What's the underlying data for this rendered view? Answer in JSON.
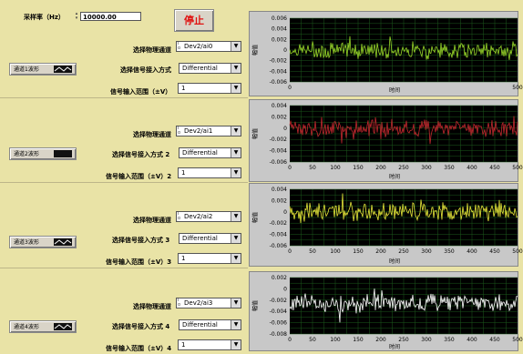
{
  "sample_rate": {
    "label": "采样率（Hz）",
    "value": "10000.00"
  },
  "stop_button": {
    "label": "停止"
  },
  "channels": [
    {
      "channel_label": "选择物理通道",
      "channel_value": "Dev2/ai0",
      "terminal_label": "选择信号接入方式",
      "terminal_value": "Differential",
      "range_label": "信号输入范围（±V）",
      "range_value": "1",
      "waveform_button": "通道1波形",
      "color": "#9ad82a",
      "graph": {
        "ylabel": "幅值",
        "xlabel": "时间",
        "xticks": [
          "0",
          "500"
        ],
        "yticks": [
          "0.006",
          "0.004",
          "0.002",
          "0",
          "-0.002",
          "-0.004",
          "-0.006"
        ],
        "ylim": [
          -0.006,
          0.006
        ]
      }
    },
    {
      "channel_label": "选择物理通道",
      "channel_value": "Dev2/ai1",
      "terminal_label": "选择信号接入方式 2",
      "terminal_value": "Differential",
      "range_label": "信号输入范围（±V）2",
      "range_value": "1",
      "waveform_button": "通道2波形",
      "color": "#c0282e",
      "graph": {
        "ylabel": "幅值",
        "xlabel": "时间",
        "xticks": [
          "0",
          "50",
          "100",
          "150",
          "200",
          "250",
          "300",
          "350",
          "400",
          "450",
          "500"
        ],
        "yticks": [
          "0.004",
          "0.002",
          "0",
          "-0.002",
          "-0.004",
          "-0.006"
        ],
        "ylim": [
          -0.006,
          0.004
        ]
      }
    },
    {
      "channel_label": "选择物理通道",
      "channel_value": "Dev2/ai2",
      "terminal_label": "选择信号接入方式 3",
      "terminal_value": "Differential",
      "range_label": "信号输入范围（±V）3",
      "range_value": "1",
      "waveform_button": "通道3波形",
      "color": "#e8e83a",
      "graph": {
        "ylabel": "幅值",
        "xlabel": "时间",
        "xticks": [
          "0",
          "50",
          "100",
          "150",
          "200",
          "250",
          "300",
          "350",
          "400",
          "450",
          "500"
        ],
        "yticks": [
          "0.004",
          "0.002",
          "0",
          "-0.002",
          "-0.004",
          "-0.006"
        ],
        "ylim": [
          -0.006,
          0.004
        ]
      }
    },
    {
      "channel_label": "选择物理通道",
      "channel_value": "Dev2/ai3",
      "terminal_label": "选择信号接入方式 4",
      "terminal_value": "Differential",
      "range_label": "信号输入范围（±V）4",
      "range_value": "1",
      "waveform_button": "通道4波形",
      "color": "#ffffff",
      "graph": {
        "ylabel": "幅值",
        "xlabel": "时间",
        "xticks": [
          "0",
          "50",
          "100",
          "150",
          "200",
          "250",
          "300",
          "350",
          "400",
          "450",
          "500"
        ],
        "yticks": [
          "0.002",
          "0",
          "-0.002",
          "-0.004",
          "-0.006",
          "-0.008"
        ],
        "ylim": [
          -0.008,
          0.002
        ]
      }
    }
  ]
}
